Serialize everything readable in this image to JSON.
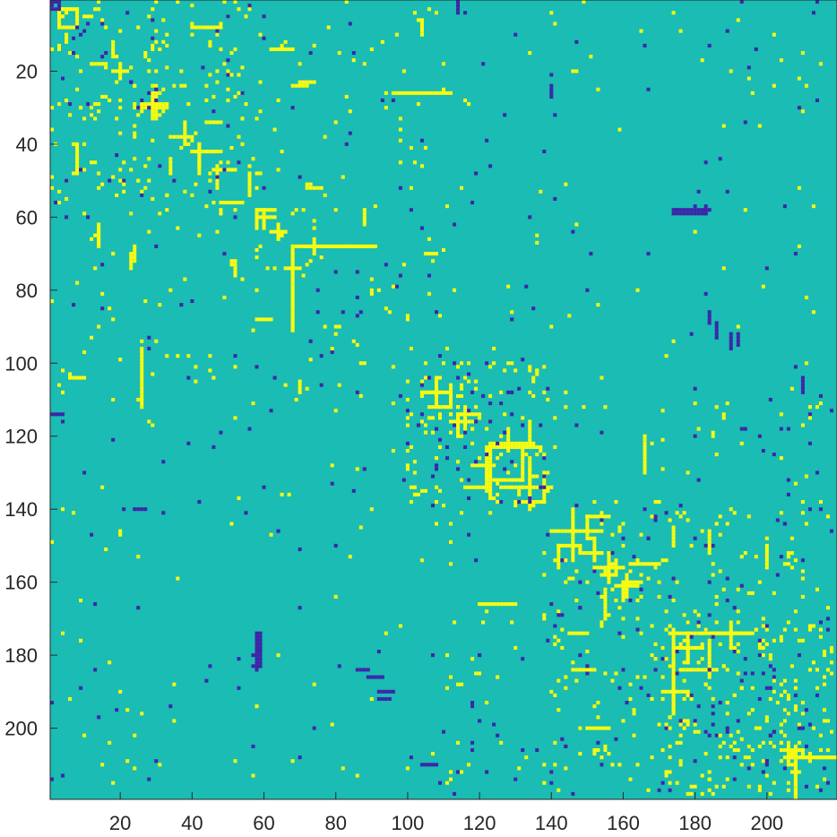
{
  "chart_data": {
    "type": "heatmap",
    "title": "",
    "xlabel": "",
    "ylabel": "",
    "rows": 219,
    "cols": 219,
    "xlim": [
      0.5,
      219.5
    ],
    "ylim": [
      0.5,
      219.5
    ],
    "y_axis_direction": "reversed",
    "x_ticks": [
      20,
      40,
      60,
      80,
      100,
      120,
      140,
      160,
      180,
      200
    ],
    "y_ticks": [
      20,
      40,
      60,
      80,
      100,
      120,
      140,
      160,
      180,
      200
    ],
    "value_levels": [
      -1,
      0,
      1
    ],
    "colors": {
      "-1": "#3d26a8",
      "0": "#1abcb4",
      "1": "#f9fb0e"
    },
    "grid": false,
    "legend": "none",
    "positive_segments": [
      [
        3,
        [
          3,
          8
        ]
      ],
      [
        5,
        [
          10,
          12
        ]
      ],
      [
        8,
        [
          4,
          7
        ]
      ],
      [
        14,
        [
          62,
          68
        ]
      ],
      [
        18,
        [
          12,
          16
        ]
      ],
      [
        20,
        [
          18,
          22
        ]
      ],
      [
        24,
        [
          68,
          72
        ]
      ],
      [
        26,
        [
          96,
          112
        ]
      ],
      [
        30,
        [
          26,
          32
        ]
      ],
      [
        34,
        [
          44,
          48
        ]
      ],
      [
        38,
        [
          34,
          40
        ]
      ],
      [
        42,
        [
          40,
          46
        ]
      ],
      [
        47,
        [
          46,
          52
        ]
      ],
      [
        52,
        [
          72,
          76
        ]
      ],
      [
        56,
        [
          48,
          54
        ]
      ],
      [
        60,
        [
          58,
          63
        ]
      ],
      [
        64,
        [
          62,
          66
        ]
      ],
      [
        68,
        [
          70,
          91
        ]
      ],
      [
        70,
        [
          105,
          108
        ]
      ],
      [
        74,
        [
          66,
          70
        ]
      ],
      [
        88,
        [
          58,
          62
        ]
      ],
      [
        104,
        [
          6,
          10
        ]
      ],
      [
        108,
        [
          104,
          108
        ]
      ],
      [
        112,
        [
          106,
          112
        ]
      ],
      [
        116,
        [
          112,
          118
        ]
      ],
      [
        122,
        [
          124,
          134
        ]
      ],
      [
        128,
        [
          118,
          124
        ]
      ],
      [
        132,
        [
          124,
          132
        ]
      ],
      [
        134,
        [
          116,
          122
        ]
      ],
      [
        138,
        [
          130,
          138
        ]
      ],
      [
        142,
        [
          150,
          156
        ]
      ],
      [
        146,
        [
          140,
          146
        ]
      ],
      [
        150,
        [
          142,
          148
        ]
      ],
      [
        152,
        [
          148,
          154
        ]
      ],
      [
        155,
        [
          162,
          170
        ]
      ],
      [
        158,
        [
          154,
          158
        ]
      ],
      [
        161,
        [
          158,
          164
        ]
      ],
      [
        166,
        [
          120,
          130
        ]
      ],
      [
        174,
        [
          174,
          180
        ]
      ],
      [
        174,
        [
          185,
          195
        ]
      ],
      [
        178,
        [
          176,
          182
        ]
      ],
      [
        184,
        [
          146,
          152
        ]
      ],
      [
        190,
        [
          172,
          178
        ]
      ],
      [
        200,
        [
          150,
          156
        ]
      ],
      [
        206,
        [
          204,
          210
        ]
      ],
      [
        208,
        [
          207,
          219
        ]
      ]
    ],
    "positive_column_segments": [
      [
        3,
        [
          1,
          8
        ]
      ],
      [
        8,
        [
          40,
          48
        ]
      ],
      [
        14,
        [
          64,
          68
        ]
      ],
      [
        23,
        [
          70,
          74
        ]
      ],
      [
        29,
        [
          26,
          33
        ]
      ],
      [
        42,
        [
          40,
          48
        ]
      ],
      [
        58,
        [
          58,
          63
        ]
      ],
      [
        68,
        [
          68,
          91
        ]
      ],
      [
        108,
        [
          104,
          110
        ]
      ],
      [
        114,
        [
          114,
          120
        ]
      ],
      [
        123,
        [
          122,
          137
        ]
      ],
      [
        134,
        [
          126,
          140
        ]
      ],
      [
        146,
        [
          146,
          154
        ]
      ],
      [
        156,
        [
          152,
          160
        ]
      ],
      [
        160,
        [
          160,
          165
        ]
      ],
      [
        174,
        [
          145,
          150
        ]
      ],
      [
        174,
        [
          182,
          195
        ]
      ],
      [
        178,
        [
          174,
          182
        ]
      ],
      [
        184,
        [
          176,
          186
        ]
      ],
      [
        208,
        [
          206,
          219
        ]
      ]
    ],
    "negative_segments": [
      [
        1,
        [
          0,
          2
        ]
      ],
      [
        3,
        [
          0,
          3
        ]
      ],
      [
        59,
        [
          174,
          183
        ]
      ],
      [
        114,
        [
          0,
          4
        ]
      ],
      [
        140,
        [
          24,
          27
        ]
      ],
      [
        183,
        [
          57,
          59
        ]
      ],
      [
        186,
        [
          89,
          93
        ]
      ],
      [
        192,
        [
          92,
          95
        ]
      ],
      [
        210,
        [
          104,
          108
        ]
      ]
    ],
    "negative_column_segments": [
      [
        58,
        [
          174,
          184
        ]
      ],
      [
        184,
        [
          86,
          89
        ]
      ],
      [
        190,
        [
          92,
          96
        ]
      ]
    ]
  }
}
